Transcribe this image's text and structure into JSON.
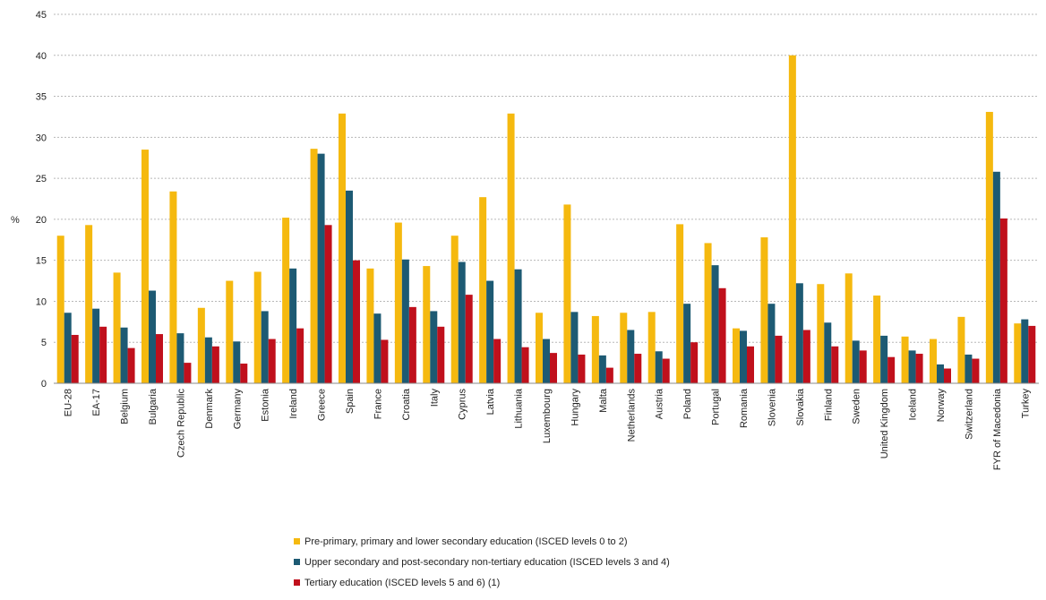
{
  "chart_data": {
    "type": "bar",
    "title": "",
    "xlabel": "",
    "ylabel": "%",
    "ylim": [
      0,
      45
    ],
    "yticks": [
      0,
      5,
      10,
      15,
      20,
      25,
      30,
      35,
      40,
      45
    ],
    "grid": true,
    "legend_position": "bottom",
    "categories": [
      "EU-28",
      "EA-17",
      "Belgium",
      "Bulgaria",
      "Czech Republic",
      "Denmark",
      "Germany",
      "Estonia",
      "Ireland",
      "Greece",
      "Spain",
      "France",
      "Croatia",
      "Italy",
      "Cyprus",
      "Latvia",
      "Lithuania",
      "Luxembourg",
      "Hungary",
      "Malta",
      "Netherlands",
      "Austria",
      "Poland",
      "Portugal",
      "Romania",
      "Slovenia",
      "Slovakia",
      "Finland",
      "Sweden",
      "United Kingdom",
      "Iceland",
      "Norway",
      "Switzerland",
      "FYR of Macedonia",
      "Turkey"
    ],
    "series": [
      {
        "name": "Pre-primary, primary and lower secondary education (ISCED levels 0 to 2)",
        "color": "#f5b90f",
        "values": [
          18.0,
          19.3,
          13.5,
          28.5,
          23.4,
          9.2,
          12.5,
          13.6,
          20.2,
          28.6,
          32.9,
          14.0,
          19.6,
          14.3,
          18.0,
          22.7,
          32.9,
          8.6,
          21.8,
          8.2,
          8.6,
          8.7,
          19.4,
          17.1,
          6.7,
          17.8,
          40.0,
          12.1,
          13.4,
          10.7,
          5.7,
          5.4,
          8.1,
          33.1,
          7.3
        ]
      },
      {
        "name": "Upper secondary and post-secondary non-tertiary education (ISCED levels 3 and 4)",
        "color": "#1d5a73",
        "values": [
          8.6,
          9.1,
          6.8,
          11.3,
          6.1,
          5.6,
          5.1,
          8.8,
          14.0,
          28.0,
          23.5,
          8.5,
          15.1,
          8.8,
          14.8,
          12.5,
          13.9,
          5.4,
          8.7,
          3.4,
          6.5,
          3.9,
          9.7,
          14.4,
          6.4,
          9.7,
          12.2,
          7.4,
          5.2,
          5.8,
          4.0,
          2.3,
          3.5,
          25.8,
          7.8
        ]
      },
      {
        "name": "Tertiary education (ISCED levels 5 and 6) (1)",
        "color": "#c0101c",
        "values": [
          5.9,
          6.9,
          4.3,
          6.0,
          2.5,
          4.5,
          2.4,
          5.4,
          6.7,
          19.3,
          15.0,
          5.3,
          9.3,
          6.9,
          10.8,
          5.4,
          4.4,
          3.7,
          3.5,
          1.9,
          3.6,
          3.0,
          5.0,
          11.6,
          4.5,
          5.8,
          6.5,
          4.5,
          4.0,
          3.2,
          3.6,
          1.8,
          3.0,
          20.1,
          7.0
        ]
      }
    ]
  }
}
